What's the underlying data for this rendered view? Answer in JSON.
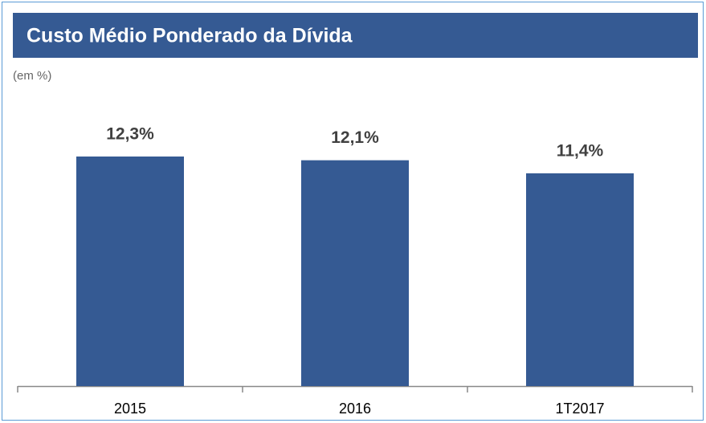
{
  "chart_data": {
    "type": "bar",
    "title": "Custo Médio Ponderado da Dívida",
    "subtitle": "(em %)",
    "categories": [
      "2015",
      "2016",
      "1T2017"
    ],
    "values": [
      12.3,
      12.1,
      11.4
    ],
    "value_labels": [
      "12,3%",
      "12,1%",
      "11,4%"
    ],
    "color": "#355a93"
  }
}
